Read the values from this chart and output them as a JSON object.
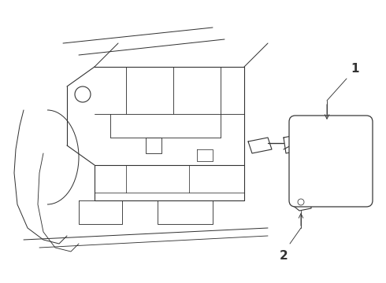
{
  "title": "",
  "background_color": "#ffffff",
  "line_color": "#333333",
  "line_width": 0.8,
  "label_1": "1",
  "label_2": "2",
  "label_font_size": 11,
  "fig_width": 4.9,
  "fig_height": 3.6,
  "dpi": 100
}
